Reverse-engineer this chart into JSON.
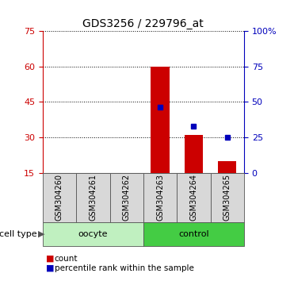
{
  "title": "GDS3256 / 229796_at",
  "samples": [
    "GSM304260",
    "GSM304261",
    "GSM304262",
    "GSM304263",
    "GSM304264",
    "GSM304265"
  ],
  "red_bars": [
    0,
    0,
    0,
    60,
    31,
    20
  ],
  "blue_squares_right": [
    null,
    null,
    null,
    46,
    33,
    25
  ],
  "left_ylim": [
    15,
    75
  ],
  "left_yticks": [
    15,
    30,
    45,
    60,
    75
  ],
  "right_ylim": [
    0,
    100
  ],
  "right_yticks": [
    0,
    25,
    50,
    75,
    100
  ],
  "right_yticklabels": [
    "0",
    "25",
    "50",
    "75",
    "100%"
  ],
  "cell_types": [
    {
      "label": "oocyte",
      "start": 0,
      "end": 2,
      "color": "#c0f0c0"
    },
    {
      "label": "control",
      "start": 3,
      "end": 5,
      "color": "#44cc44"
    }
  ],
  "bar_color": "#cc0000",
  "square_color": "#0000bb",
  "sample_bg_color": "#d8d8d8",
  "sample_edge_color": "#555555",
  "left_axis_color": "#cc0000",
  "right_axis_color": "#0000bb",
  "grid_color": "#000000",
  "legend_count_label": "count",
  "legend_percentile_label": "percentile rank within the sample",
  "cell_type_label": "cell type"
}
